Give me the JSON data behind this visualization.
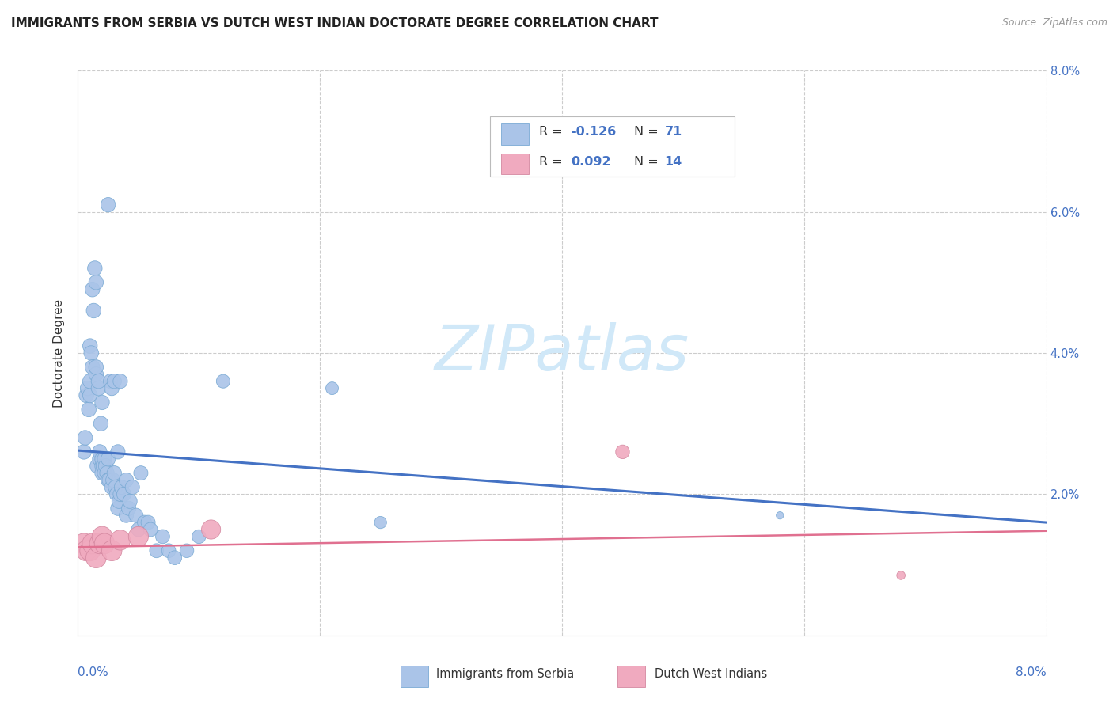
{
  "title": "IMMIGRANTS FROM SERBIA VS DUTCH WEST INDIAN DOCTORATE DEGREE CORRELATION CHART",
  "source": "Source: ZipAtlas.com",
  "ylabel": "Doctorate Degree",
  "legend_serbia": "Immigrants from Serbia",
  "legend_dutch": "Dutch West Indians",
  "r_serbia": -0.126,
  "n_serbia": 71,
  "r_dutch": 0.092,
  "n_dutch": 14,
  "serbia_color": "#aac4e8",
  "serbia_edge_color": "#7aaad4",
  "dutch_color": "#f0aabf",
  "dutch_edge_color": "#d488a0",
  "serbia_line_color": "#4472c4",
  "dutch_line_color": "#e07090",
  "grid_color": "#cccccc",
  "text_color": "#333333",
  "blue_label_color": "#4472c4",
  "pink_label_color": "#e07090",
  "watermark_color": "#d0e8f8",
  "xlim": [
    0.0,
    8.0
  ],
  "ylim": [
    0.0,
    8.0
  ],
  "serbia_x": [
    0.05,
    0.06,
    0.07,
    0.08,
    0.09,
    0.1,
    0.1,
    0.1,
    0.11,
    0.12,
    0.12,
    0.13,
    0.14,
    0.15,
    0.15,
    0.15,
    0.16,
    0.17,
    0.17,
    0.18,
    0.18,
    0.19,
    0.2,
    0.2,
    0.2,
    0.2,
    0.21,
    0.22,
    0.22,
    0.23,
    0.24,
    0.25,
    0.25,
    0.25,
    0.26,
    0.27,
    0.28,
    0.28,
    0.29,
    0.3,
    0.3,
    0.31,
    0.32,
    0.33,
    0.33,
    0.34,
    0.35,
    0.35,
    0.36,
    0.38,
    0.4,
    0.4,
    0.42,
    0.43,
    0.45,
    0.48,
    0.5,
    0.52,
    0.55,
    0.58,
    0.6,
    0.65,
    0.7,
    0.75,
    0.8,
    0.9,
    1.0,
    1.2,
    2.1,
    2.5,
    5.8
  ],
  "serbia_y": [
    2.6,
    2.8,
    3.4,
    3.5,
    3.2,
    3.4,
    4.1,
    3.6,
    4.0,
    4.9,
    3.8,
    4.6,
    5.2,
    5.0,
    3.7,
    3.8,
    2.4,
    3.5,
    3.6,
    2.5,
    2.6,
    3.0,
    3.3,
    2.4,
    2.3,
    2.5,
    2.4,
    2.3,
    2.5,
    2.4,
    2.3,
    2.2,
    2.5,
    6.1,
    2.2,
    3.6,
    2.1,
    3.5,
    2.2,
    2.3,
    3.6,
    2.1,
    2.0,
    1.8,
    2.6,
    1.9,
    2.0,
    3.6,
    2.1,
    2.0,
    1.7,
    2.2,
    1.8,
    1.9,
    2.1,
    1.7,
    1.5,
    2.3,
    1.6,
    1.6,
    1.5,
    1.2,
    1.4,
    1.2,
    1.1,
    1.2,
    1.4,
    3.6,
    3.5,
    1.6,
    1.7
  ],
  "dutch_x": [
    0.05,
    0.07,
    0.1,
    0.12,
    0.15,
    0.18,
    0.2,
    0.22,
    0.28,
    0.35,
    0.5,
    1.1,
    4.5,
    6.8
  ],
  "dutch_y": [
    1.3,
    1.2,
    1.2,
    1.3,
    1.1,
    1.3,
    1.4,
    1.3,
    1.2,
    1.35,
    1.4,
    1.5,
    2.6,
    0.85
  ],
  "serbia_line_x0": 0.0,
  "serbia_line_y0": 2.62,
  "serbia_line_x1": 8.0,
  "serbia_line_y1": 1.6,
  "dutch_line_x0": 0.0,
  "dutch_line_y0": 1.25,
  "dutch_line_x1": 8.0,
  "dutch_line_y1": 1.48
}
